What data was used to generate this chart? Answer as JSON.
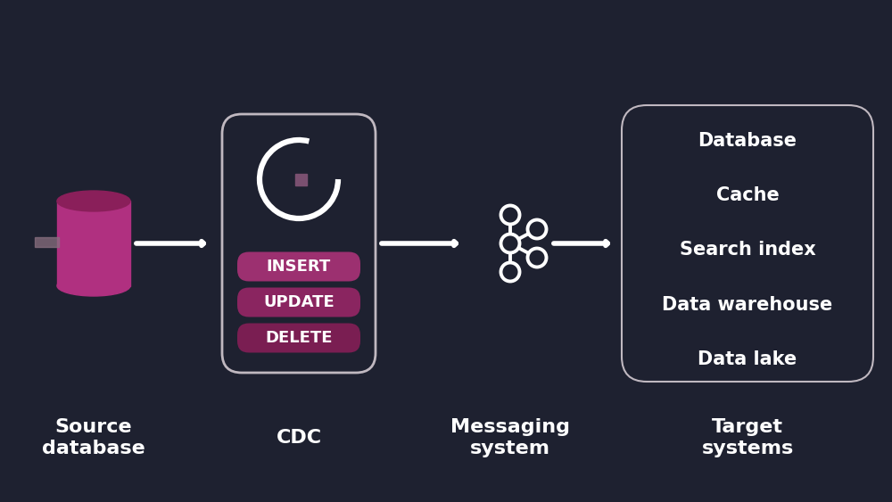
{
  "bg_color": "#1e2130",
  "white": "#ffffff",
  "pink_body": "#b03080",
  "pink_top": "#8a1f5a",
  "pink_btn1": "#9c3070",
  "pink_btn2": "#8a2560",
  "pink_btn3": "#7a1e52",
  "gray_handle": "#8a7080",
  "box_border": "#c0b8c0",
  "sq_color": "#7a5070",
  "source_label": "Source\ndatabase",
  "cdc_label": "CDC",
  "msg_label": "Messaging\nsystem",
  "target_label": "Target\nsystems",
  "cdc_ops": [
    "INSERT",
    "UPDATE",
    "DELETE"
  ],
  "target_items": [
    "Database",
    "Cache",
    "Search index",
    "Data warehouse",
    "Data lake"
  ],
  "label_fontsize": 16,
  "ops_fontsize": 13,
  "target_items_fontsize": 15
}
